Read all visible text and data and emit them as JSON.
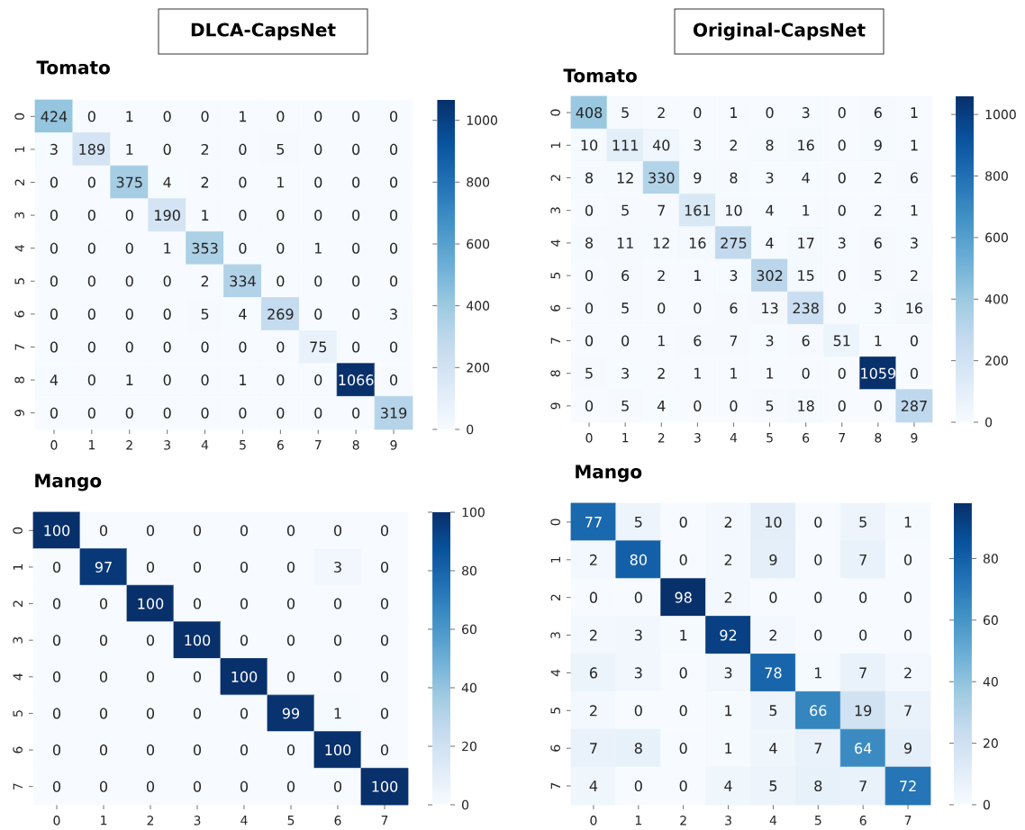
{
  "chart_data": [
    {
      "type": "heatmap",
      "title": "DLCA-CapsNet",
      "subtitle": "Tomato",
      "categories": [
        "0",
        "1",
        "2",
        "3",
        "4",
        "5",
        "6",
        "7",
        "8",
        "9"
      ],
      "y_categories": [
        "0",
        "1",
        "2",
        "3",
        "4",
        "5",
        "6",
        "7",
        "8",
        "9"
      ],
      "cells": [
        [
          424,
          0,
          1,
          0,
          0,
          1,
          0,
          0,
          0,
          0
        ],
        [
          3,
          189,
          1,
          0,
          2,
          0,
          5,
          0,
          0,
          0
        ],
        [
          0,
          0,
          375,
          4,
          2,
          0,
          1,
          0,
          0,
          0
        ],
        [
          0,
          0,
          0,
          190,
          1,
          0,
          0,
          0,
          0,
          0
        ],
        [
          0,
          0,
          0,
          1,
          353,
          0,
          0,
          1,
          0,
          0
        ],
        [
          0,
          0,
          0,
          0,
          2,
          334,
          0,
          0,
          0,
          0
        ],
        [
          0,
          0,
          0,
          0,
          5,
          4,
          269,
          0,
          0,
          3
        ],
        [
          0,
          0,
          0,
          0,
          0,
          0,
          0,
          75,
          0,
          0
        ],
        [
          4,
          0,
          1,
          0,
          0,
          1,
          0,
          0,
          1066,
          0
        ],
        [
          0,
          0,
          0,
          0,
          0,
          0,
          0,
          0,
          0,
          319
        ]
      ],
      "clim": [
        0,
        1066
      ],
      "cticks": [
        0,
        200,
        400,
        600,
        800,
        1000
      ],
      "data_labels": true
    },
    {
      "type": "heatmap",
      "title": "Original-CapsNet",
      "subtitle": "Tomato",
      "categories": [
        "0",
        "1",
        "2",
        "3",
        "4",
        "5",
        "6",
        "7",
        "8",
        "9"
      ],
      "y_categories": [
        "0",
        "1",
        "2",
        "3",
        "4",
        "5",
        "6",
        "7",
        "8",
        "9"
      ],
      "cells": [
        [
          408,
          5,
          2,
          0,
          1,
          0,
          3,
          0,
          6,
          1
        ],
        [
          10,
          111,
          40,
          3,
          2,
          8,
          16,
          0,
          9,
          1
        ],
        [
          8,
          12,
          330,
          9,
          8,
          3,
          4,
          0,
          2,
          6
        ],
        [
          0,
          5,
          7,
          161,
          10,
          4,
          1,
          0,
          2,
          1
        ],
        [
          8,
          11,
          12,
          16,
          275,
          4,
          17,
          3,
          6,
          3
        ],
        [
          0,
          6,
          2,
          1,
          3,
          302,
          15,
          0,
          5,
          2
        ],
        [
          0,
          5,
          0,
          0,
          6,
          13,
          238,
          0,
          3,
          16
        ],
        [
          0,
          0,
          1,
          6,
          7,
          3,
          6,
          51,
          1,
          0
        ],
        [
          5,
          3,
          2,
          1,
          1,
          1,
          0,
          0,
          1059,
          0
        ],
        [
          0,
          5,
          4,
          0,
          0,
          5,
          18,
          0,
          0,
          287
        ]
      ],
      "clim": [
        0,
        1059
      ],
      "cticks": [
        0,
        200,
        400,
        600,
        800,
        1000
      ],
      "data_labels": true
    },
    {
      "type": "heatmap",
      "title": "Mango",
      "categories": [
        "0",
        "1",
        "2",
        "3",
        "4",
        "5",
        "6",
        "7"
      ],
      "y_categories": [
        "0",
        "1",
        "2",
        "3",
        "4",
        "5",
        "6",
        "7"
      ],
      "cells": [
        [
          100,
          0,
          0,
          0,
          0,
          0,
          0,
          0
        ],
        [
          0,
          97,
          0,
          0,
          0,
          0,
          3,
          0
        ],
        [
          0,
          0,
          100,
          0,
          0,
          0,
          0,
          0
        ],
        [
          0,
          0,
          0,
          100,
          0,
          0,
          0,
          0
        ],
        [
          0,
          0,
          0,
          0,
          100,
          0,
          0,
          0
        ],
        [
          0,
          0,
          0,
          0,
          0,
          99,
          1,
          0
        ],
        [
          0,
          0,
          0,
          0,
          0,
          0,
          100,
          0
        ],
        [
          0,
          0,
          0,
          0,
          0,
          0,
          0,
          100
        ]
      ],
      "clim": [
        0,
        100
      ],
      "cticks": [
        0,
        20,
        40,
        60,
        80,
        100
      ],
      "data_labels": true
    },
    {
      "type": "heatmap",
      "title": "Mango",
      "categories": [
        "0",
        "1",
        "2",
        "3",
        "4",
        "5",
        "6",
        "7"
      ],
      "y_categories": [
        "0",
        "1",
        "2",
        "3",
        "4",
        "5",
        "6",
        "7"
      ],
      "cells": [
        [
          77,
          5,
          0,
          2,
          10,
          0,
          5,
          1
        ],
        [
          2,
          80,
          0,
          2,
          9,
          0,
          7,
          0
        ],
        [
          0,
          0,
          98,
          2,
          0,
          0,
          0,
          0
        ],
        [
          2,
          3,
          1,
          92,
          2,
          0,
          0,
          0
        ],
        [
          6,
          3,
          0,
          3,
          78,
          1,
          7,
          2
        ],
        [
          2,
          0,
          0,
          1,
          5,
          66,
          19,
          7
        ],
        [
          7,
          8,
          0,
          1,
          4,
          7,
          64,
          9
        ],
        [
          4,
          0,
          0,
          4,
          5,
          8,
          7,
          72
        ]
      ],
      "clim": [
        0,
        98
      ],
      "cticks": [
        0,
        20,
        40,
        60,
        80
      ],
      "data_labels": true
    }
  ]
}
